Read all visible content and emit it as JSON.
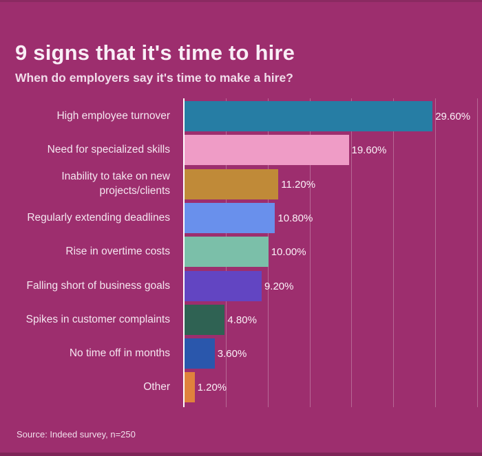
{
  "page": {
    "title": "9 signs that it's time to hire",
    "subtitle": "When do employers say it's time to make a hire?",
    "source": "Source: Indeed survey, n=250"
  },
  "colors": {
    "background": "#9d2e6e",
    "edge_band": "#7f2458",
    "axis": "#ffffff",
    "gridline": "rgba(255,255,255,0.28)",
    "title_text": "#f9eef6",
    "label_text": "#f5e6f0"
  },
  "chart_data": {
    "type": "bar",
    "orientation": "horizontal",
    "title": "9 signs that it's time to hire",
    "subtitle": "When do employers say it's time to make a hire?",
    "xlabel": "",
    "ylabel": "",
    "grid": true,
    "legend": "none",
    "xlim": [
      0,
      35.5
    ],
    "gridline_values": [
      5,
      10,
      15,
      20,
      25,
      30,
      35
    ],
    "categories": [
      "High employee turnover",
      "Need for specialized skills",
      "Inability to take on new projects/clients",
      "Regularly extending deadlines",
      "Rise in overtime costs",
      "Falling short of business goals",
      "Spikes in customer complaints",
      "No time off in months",
      "Other"
    ],
    "values": [
      29.6,
      19.6,
      11.2,
      10.8,
      10.0,
      9.2,
      4.8,
      3.6,
      1.2
    ],
    "value_labels": [
      "29.60%",
      "19.60%",
      "11.20%",
      "10.80%",
      "10.00%",
      "9.20%",
      "4.80%",
      "3.60%",
      "1.20%"
    ],
    "bar_colors": [
      "#267da4",
      "#ef9cc6",
      "#c08a38",
      "#6990ec",
      "#7bbfa9",
      "#6245c2",
      "#2f6253",
      "#2a57ac",
      "#e0823c"
    ]
  }
}
